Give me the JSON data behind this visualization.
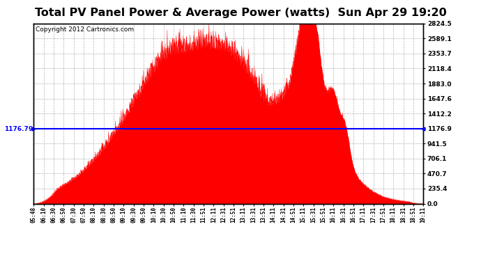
{
  "title": "Total PV Panel Power & Average Power (watts)  Sun Apr 29 19:20",
  "copyright": "Copyright 2012 Cartronics.com",
  "avg_value": 1176.79,
  "ymax": 2824.5,
  "ymin": 0.0,
  "yticks_right": [
    0.0,
    235.4,
    470.7,
    706.1,
    941.5,
    1176.9,
    1412.2,
    1647.6,
    1883.0,
    2118.4,
    2353.7,
    2589.1,
    2824.5
  ],
  "fill_color": "#ff0000",
  "avg_line_color": "#0000ff",
  "background_color": "#ffffff",
  "grid_color": "#aaaaaa",
  "title_fontsize": 11.5,
  "copyright_fontsize": 6.5,
  "xtick_labels": [
    "05:48",
    "06:10",
    "06:30",
    "06:50",
    "07:30",
    "07:50",
    "08:10",
    "08:30",
    "08:50",
    "09:10",
    "09:30",
    "09:50",
    "10:10",
    "10:30",
    "10:50",
    "11:10",
    "11:30",
    "11:51",
    "12:11",
    "12:31",
    "12:51",
    "13:11",
    "13:31",
    "13:51",
    "14:11",
    "14:31",
    "14:51",
    "15:11",
    "15:31",
    "15:51",
    "16:11",
    "16:31",
    "16:51",
    "17:11",
    "17:31",
    "17:51",
    "18:11",
    "18:31",
    "18:51",
    "19:11"
  ]
}
